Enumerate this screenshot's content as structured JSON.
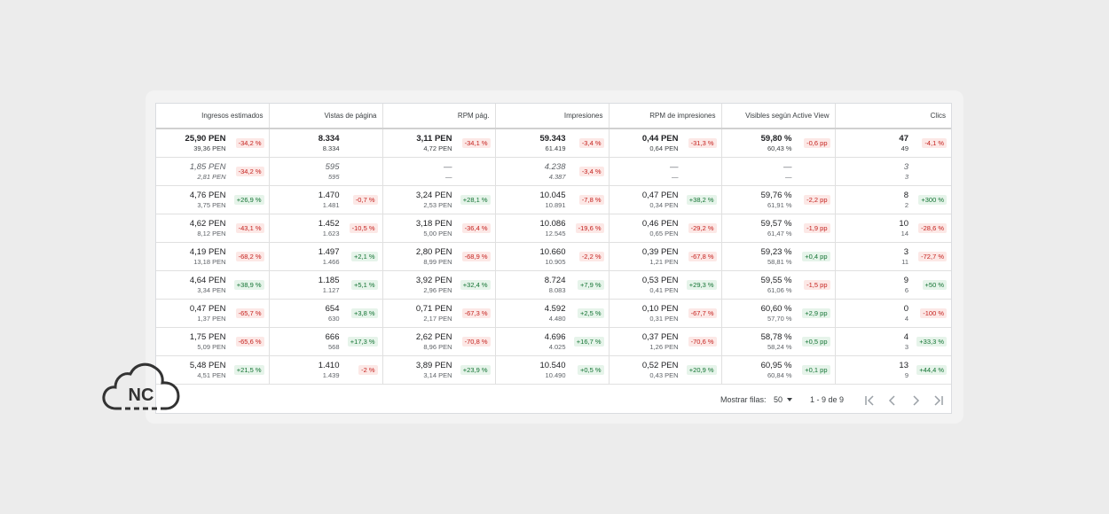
{
  "columns": [
    "Ingresos estimados",
    "Vistas de página",
    "RPM pág.",
    "Impresiones",
    "RPM de impresiones",
    "Visibles según Active View",
    "Clics"
  ],
  "rows": [
    {
      "style": "bold",
      "cells": [
        {
          "v1": "25,90 PEN",
          "v2": "39,36 PEN",
          "b": "-34,2 %",
          "t": "neg"
        },
        {
          "v1": "8.334",
          "v2": "8.334",
          "b": "",
          "t": ""
        },
        {
          "v1": "3,11 PEN",
          "v2": "4,72 PEN",
          "b": "-34,1 %",
          "t": "neg"
        },
        {
          "v1": "59.343",
          "v2": "61.419",
          "b": "-3,4 %",
          "t": "neg"
        },
        {
          "v1": "0,44 PEN",
          "v2": "0,64 PEN",
          "b": "-31,3 %",
          "t": "neg"
        },
        {
          "v1": "59,80 %",
          "v2": "60,43 %",
          "b": "-0,6 pp",
          "t": "neg"
        },
        {
          "v1": "47",
          "v2": "49",
          "b": "-4,1 %",
          "t": "neg"
        }
      ]
    },
    {
      "style": "ital",
      "cells": [
        {
          "v1": "1,85 PEN",
          "v2": "2,81 PEN",
          "b": "-34,2 %",
          "t": "neg"
        },
        {
          "v1": "595",
          "v2": "595",
          "b": "",
          "t": ""
        },
        {
          "v1": "—",
          "v2": "—",
          "b": "",
          "t": ""
        },
        {
          "v1": "4.238",
          "v2": "4.387",
          "b": "-3,4 %",
          "t": "neg"
        },
        {
          "v1": "—",
          "v2": "—",
          "b": "",
          "t": ""
        },
        {
          "v1": "—",
          "v2": "—",
          "b": "",
          "t": ""
        },
        {
          "v1": "3",
          "v2": "3",
          "b": "",
          "t": ""
        }
      ]
    },
    {
      "style": "",
      "cells": [
        {
          "v1": "4,76 PEN",
          "v2": "3,75 PEN",
          "b": "+26,9 %",
          "t": "pos"
        },
        {
          "v1": "1.470",
          "v2": "1.481",
          "b": "-0,7 %",
          "t": "neg"
        },
        {
          "v1": "3,24 PEN",
          "v2": "2,53 PEN",
          "b": "+28,1 %",
          "t": "pos"
        },
        {
          "v1": "10.045",
          "v2": "10.891",
          "b": "-7,8 %",
          "t": "neg"
        },
        {
          "v1": "0,47 PEN",
          "v2": "0,34 PEN",
          "b": "+38,2 %",
          "t": "pos"
        },
        {
          "v1": "59,76 %",
          "v2": "61,91 %",
          "b": "-2,2 pp",
          "t": "neg"
        },
        {
          "v1": "8",
          "v2": "2",
          "b": "+300 %",
          "t": "pos"
        }
      ]
    },
    {
      "style": "",
      "cells": [
        {
          "v1": "4,62 PEN",
          "v2": "8,12 PEN",
          "b": "-43,1 %",
          "t": "neg"
        },
        {
          "v1": "1.452",
          "v2": "1.623",
          "b": "-10,5 %",
          "t": "neg"
        },
        {
          "v1": "3,18 PEN",
          "v2": "5,00 PEN",
          "b": "-36,4 %",
          "t": "neg"
        },
        {
          "v1": "10.086",
          "v2": "12.545",
          "b": "-19,6 %",
          "t": "neg"
        },
        {
          "v1": "0,46 PEN",
          "v2": "0,65 PEN",
          "b": "-29,2 %",
          "t": "neg"
        },
        {
          "v1": "59,57 %",
          "v2": "61,47 %",
          "b": "-1,9 pp",
          "t": "neg"
        },
        {
          "v1": "10",
          "v2": "14",
          "b": "-28,6 %",
          "t": "neg"
        }
      ]
    },
    {
      "style": "",
      "cells": [
        {
          "v1": "4,19 PEN",
          "v2": "13,18 PEN",
          "b": "-68,2 %",
          "t": "neg"
        },
        {
          "v1": "1.497",
          "v2": "1.466",
          "b": "+2,1 %",
          "t": "pos"
        },
        {
          "v1": "2,80 PEN",
          "v2": "8,99 PEN",
          "b": "-68,9 %",
          "t": "neg"
        },
        {
          "v1": "10.660",
          "v2": "10.905",
          "b": "-2,2 %",
          "t": "neg"
        },
        {
          "v1": "0,39 PEN",
          "v2": "1,21 PEN",
          "b": "-67,8 %",
          "t": "neg"
        },
        {
          "v1": "59,23 %",
          "v2": "58,81 %",
          "b": "+0,4 pp",
          "t": "pos"
        },
        {
          "v1": "3",
          "v2": "11",
          "b": "-72,7 %",
          "t": "neg"
        }
      ]
    },
    {
      "style": "",
      "cells": [
        {
          "v1": "4,64 PEN",
          "v2": "3,34 PEN",
          "b": "+38,9 %",
          "t": "pos"
        },
        {
          "v1": "1.185",
          "v2": "1.127",
          "b": "+5,1 %",
          "t": "pos"
        },
        {
          "v1": "3,92 PEN",
          "v2": "2,96 PEN",
          "b": "+32,4 %",
          "t": "pos"
        },
        {
          "v1": "8.724",
          "v2": "8.083",
          "b": "+7,9 %",
          "t": "pos"
        },
        {
          "v1": "0,53 PEN",
          "v2": "0,41 PEN",
          "b": "+29,3 %",
          "t": "pos"
        },
        {
          "v1": "59,55 %",
          "v2": "61,06 %",
          "b": "-1,5 pp",
          "t": "neg"
        },
        {
          "v1": "9",
          "v2": "6",
          "b": "+50 %",
          "t": "pos"
        }
      ]
    },
    {
      "style": "",
      "cells": [
        {
          "v1": "0,47 PEN",
          "v2": "1,37 PEN",
          "b": "-65,7 %",
          "t": "neg"
        },
        {
          "v1": "654",
          "v2": "630",
          "b": "+3,8 %",
          "t": "pos"
        },
        {
          "v1": "0,71 PEN",
          "v2": "2,17 PEN",
          "b": "-67,3 %",
          "t": "neg"
        },
        {
          "v1": "4.592",
          "v2": "4.480",
          "b": "+2,5 %",
          "t": "pos"
        },
        {
          "v1": "0,10 PEN",
          "v2": "0,31 PEN",
          "b": "-67,7 %",
          "t": "neg"
        },
        {
          "v1": "60,60 %",
          "v2": "57,70 %",
          "b": "+2,9 pp",
          "t": "pos"
        },
        {
          "v1": "0",
          "v2": "4",
          "b": "-100 %",
          "t": "neg"
        }
      ]
    },
    {
      "style": "",
      "cells": [
        {
          "v1": "1,75 PEN",
          "v2": "5,09 PEN",
          "b": "-65,6 %",
          "t": "neg"
        },
        {
          "v1": "666",
          "v2": "568",
          "b": "+17,3 %",
          "t": "pos"
        },
        {
          "v1": "2,62 PEN",
          "v2": "8,96 PEN",
          "b": "-70,8 %",
          "t": "neg"
        },
        {
          "v1": "4.696",
          "v2": "4.025",
          "b": "+16,7 %",
          "t": "pos"
        },
        {
          "v1": "0,37 PEN",
          "v2": "1,26 PEN",
          "b": "-70,6 %",
          "t": "neg"
        },
        {
          "v1": "58,78 %",
          "v2": "58,24 %",
          "b": "+0,5 pp",
          "t": "pos"
        },
        {
          "v1": "4",
          "v2": "3",
          "b": "+33,3 %",
          "t": "pos"
        }
      ]
    },
    {
      "style": "",
      "cells": [
        {
          "v1": "5,48 PEN",
          "v2": "4,51 PEN",
          "b": "+21,5 %",
          "t": "pos"
        },
        {
          "v1": "1.410",
          "v2": "1.439",
          "b": "-2 %",
          "t": "neg"
        },
        {
          "v1": "3,89 PEN",
          "v2": "3,14 PEN",
          "b": "+23,9 %",
          "t": "pos"
        },
        {
          "v1": "10.540",
          "v2": "10.490",
          "b": "+0,5 %",
          "t": "pos"
        },
        {
          "v1": "0,52 PEN",
          "v2": "0,43 PEN",
          "b": "+20,9 %",
          "t": "pos"
        },
        {
          "v1": "60,95 %",
          "v2": "60,84 %",
          "b": "+0,1 pp",
          "t": "pos"
        },
        {
          "v1": "13",
          "v2": "9",
          "b": "+44,4 %",
          "t": "pos"
        }
      ]
    }
  ],
  "footer": {
    "rows_label": "Mostrar filas:",
    "rows_value": "50",
    "range": "1 - 9 de 9",
    "nav_icons": [
      "first-page-icon",
      "prev-page-icon",
      "next-page-icon",
      "last-page-icon"
    ]
  },
  "logo_text": "NC",
  "colors": {
    "neg_bg": "#fce8e6",
    "neg_fg": "#c5221f",
    "pos_bg": "#e6f4ea",
    "pos_fg": "#137333"
  }
}
